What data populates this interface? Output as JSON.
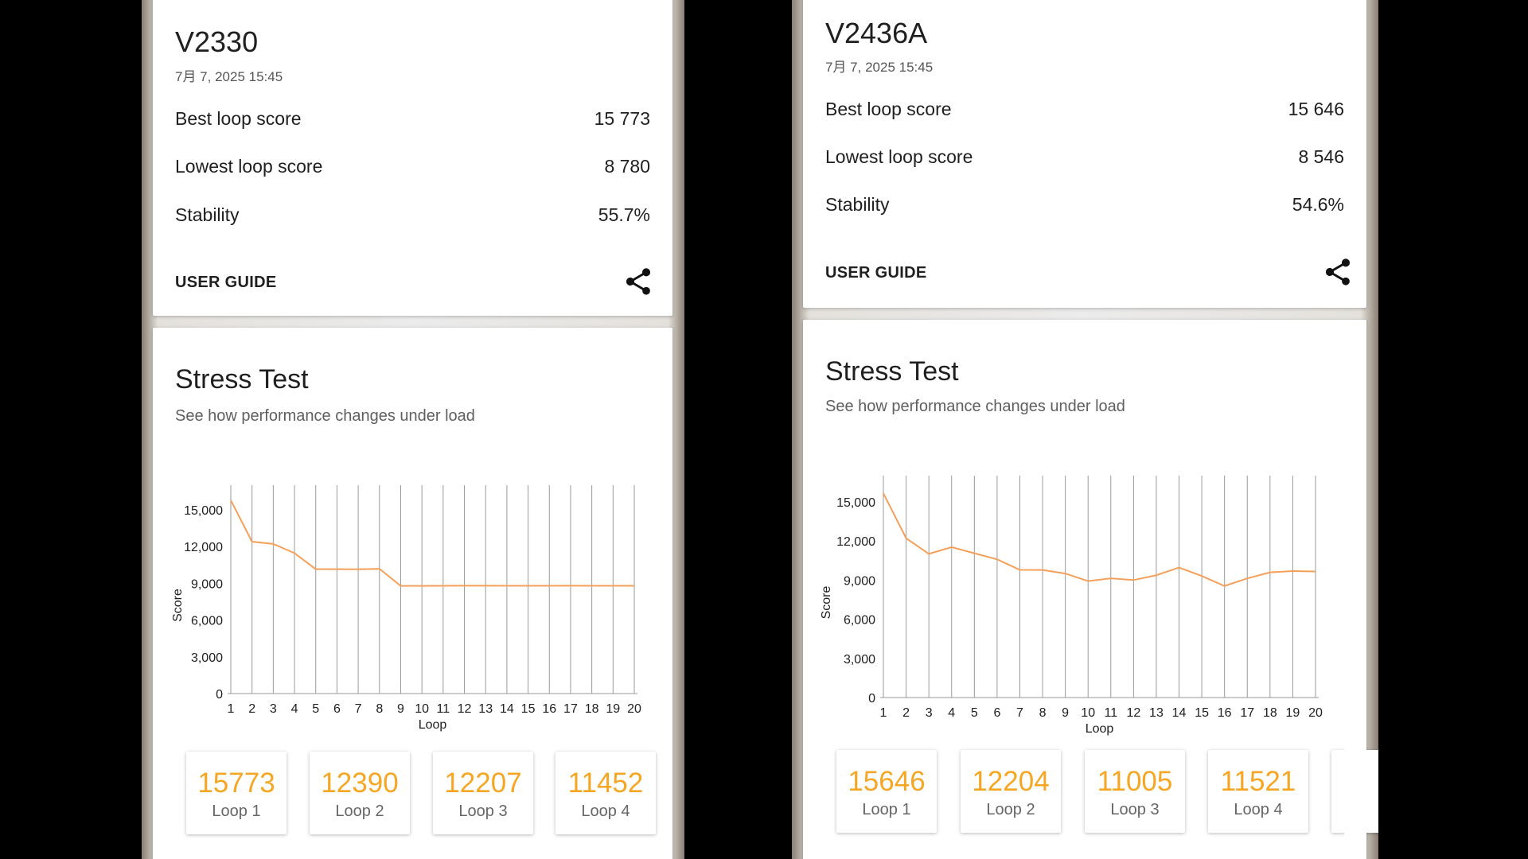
{
  "accent_color": "#f5a623",
  "share_icon": "share-icon",
  "left": {
    "device": "V2330",
    "date": "7月 7, 2025 15:45",
    "metrics": [
      {
        "label": "Best loop score",
        "value": "15 773"
      },
      {
        "label": "Lowest loop score",
        "value": "8 780"
      },
      {
        "label": "Stability",
        "value": "55.7%"
      }
    ],
    "user_guide": "USER GUIDE",
    "stress_title": "Stress Test",
    "stress_subtitle": "See how performance changes under load",
    "loops": [
      {
        "score": "15773",
        "label": "Loop 1"
      },
      {
        "score": "12390",
        "label": "Loop 2"
      },
      {
        "score": "12207",
        "label": "Loop 3"
      },
      {
        "score": "11452",
        "label": "Loop 4"
      }
    ]
  },
  "right": {
    "device": "V2436A",
    "date": "7月 7, 2025 15:45",
    "metrics": [
      {
        "label": "Best loop score",
        "value": "15 646"
      },
      {
        "label": "Lowest loop score",
        "value": "8 546"
      },
      {
        "label": "Stability",
        "value": "54.6%"
      }
    ],
    "user_guide": "USER GUIDE",
    "stress_title": "Stress Test",
    "stress_subtitle": "See how performance changes under load",
    "loops": [
      {
        "score": "15646",
        "label": "Loop 1"
      },
      {
        "score": "12204",
        "label": "Loop 2"
      },
      {
        "score": "11005",
        "label": "Loop 3"
      },
      {
        "score": "11521",
        "label": "Loop 4"
      }
    ]
  },
  "chart_data": [
    {
      "type": "line",
      "xlabel": "Loop",
      "ylabel": "Score",
      "x": [
        1,
        2,
        3,
        4,
        5,
        6,
        7,
        8,
        9,
        10,
        11,
        12,
        13,
        14,
        15,
        16,
        17,
        18,
        19,
        20
      ],
      "ylim": [
        0,
        17000
      ],
      "yticks": [
        "0",
        "3,000",
        "6,000",
        "9,000",
        "12,000",
        "15,000"
      ],
      "ytick_values": [
        0,
        3000,
        6000,
        9000,
        12000,
        15000
      ],
      "series": [
        {
          "color": "#f5a05a",
          "values": [
            15773,
            12390,
            12207,
            11452,
            10150,
            10150,
            10140,
            10180,
            8780,
            8780,
            8790,
            8800,
            8800,
            8790,
            8790,
            8790,
            8800,
            8790,
            8790,
            8790
          ]
        }
      ],
      "grid": "vertical"
    },
    {
      "type": "line",
      "xlabel": "Loop",
      "ylabel": "Score",
      "x": [
        1,
        2,
        3,
        4,
        5,
        6,
        7,
        8,
        9,
        10,
        11,
        12,
        13,
        14,
        15,
        16,
        17,
        18,
        19,
        20
      ],
      "ylim": [
        0,
        17000
      ],
      "yticks": [
        "0",
        "3,000",
        "6,000",
        "9,000",
        "12,000",
        "15,000"
      ],
      "ytick_values": [
        0,
        3000,
        6000,
        9000,
        12000,
        15000
      ],
      "series": [
        {
          "color": "#f5a05a",
          "values": [
            15646,
            12204,
            11005,
            11521,
            11050,
            10590,
            9780,
            9770,
            9500,
            8920,
            9130,
            9000,
            9370,
            9960,
            9310,
            8546,
            9130,
            9590,
            9690,
            9660
          ]
        }
      ],
      "grid": "vertical"
    }
  ]
}
